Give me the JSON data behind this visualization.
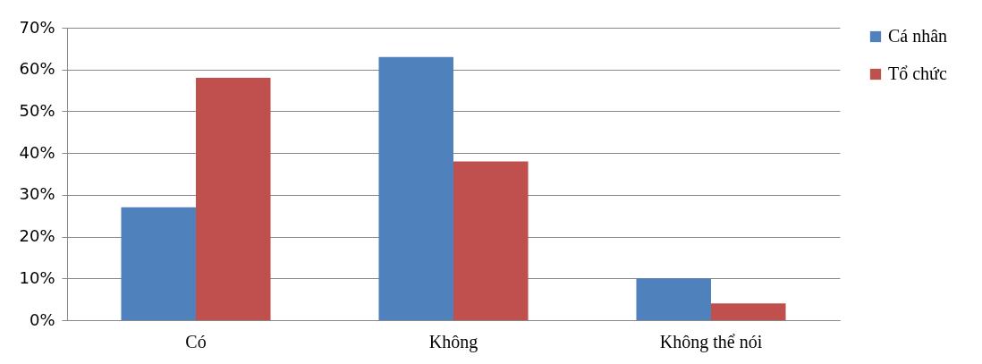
{
  "chart_data": {
    "type": "bar",
    "categories": [
      "Có",
      "Không",
      "Không thể nói"
    ],
    "series": [
      {
        "name": "Cá nhân",
        "color": "#4f81bd",
        "values": [
          27,
          63,
          10
        ]
      },
      {
        "name": "Tổ chức",
        "color": "#c0504d",
        "values": [
          58,
          38,
          4
        ]
      }
    ],
    "ylim": [
      0,
      70
    ],
    "yticks": [
      {
        "value": 0,
        "label": "0%"
      },
      {
        "value": 10,
        "label": "10%"
      },
      {
        "value": 20,
        "label": "20%"
      },
      {
        "value": 30,
        "label": "30%"
      },
      {
        "value": 40,
        "label": "40%"
      },
      {
        "value": 50,
        "label": "50%"
      },
      {
        "value": 60,
        "label": "60%"
      },
      {
        "value": 70,
        "label": "70%"
      }
    ],
    "grid": "y",
    "legend": "right"
  }
}
